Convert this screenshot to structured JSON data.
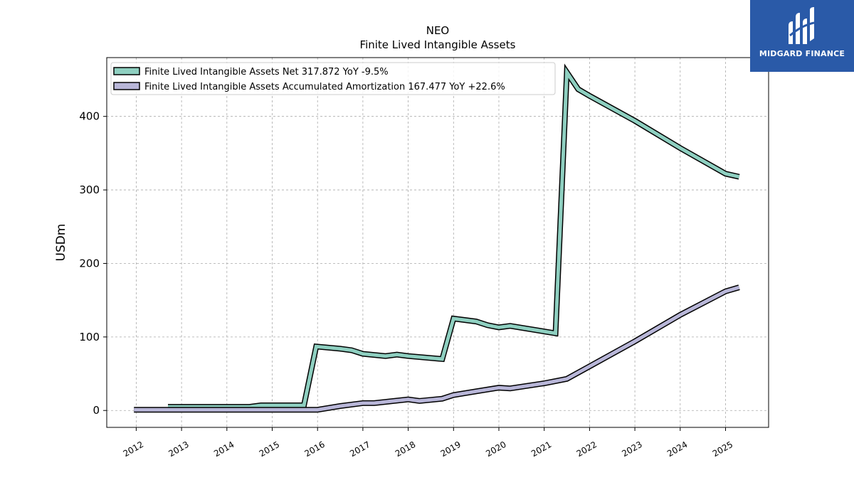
{
  "chart_data": {
    "type": "line",
    "title": "NEO",
    "subtitle": "Finite Lived Intangible Assets",
    "ylabel": "USDm",
    "xlabel": "",
    "xlim": [
      2011.35,
      2025.95
    ],
    "ylim": [
      -23,
      480
    ],
    "yticks": [
      0,
      100,
      200,
      300,
      400
    ],
    "xticks": [
      "2012",
      "2013",
      "2014",
      "2015",
      "2016",
      "2017",
      "2018",
      "2019",
      "2020",
      "2021",
      "2022",
      "2023",
      "2024",
      "2025"
    ],
    "grid": true,
    "legend_position": "top-left",
    "series": [
      {
        "name": "Finite Lived Intangible Assets Net  317.872 YoY -9.5%",
        "color": "#8ecfc0",
        "points": [
          [
            2012.7,
            5
          ],
          [
            2013.5,
            5
          ],
          [
            2014.5,
            5
          ],
          [
            2014.75,
            7
          ],
          [
            2015.7,
            7
          ],
          [
            2015.97,
            87
          ],
          [
            2016.5,
            84
          ],
          [
            2016.75,
            82
          ],
          [
            2017.0,
            77
          ],
          [
            2017.5,
            74
          ],
          [
            2017.75,
            76
          ],
          [
            2018.0,
            74
          ],
          [
            2018.75,
            70
          ],
          [
            2019.0,
            125
          ],
          [
            2019.5,
            121
          ],
          [
            2019.75,
            116
          ],
          [
            2020.0,
            113
          ],
          [
            2020.25,
            115
          ],
          [
            2021.25,
            105
          ],
          [
            2021.5,
            460
          ],
          [
            2021.75,
            437
          ],
          [
            2022.0,
            428
          ],
          [
            2023.0,
            394
          ],
          [
            2024.0,
            357
          ],
          [
            2025.0,
            322
          ],
          [
            2025.3,
            317.872
          ]
        ]
      },
      {
        "name": "Finite Lived Intangible Assets Accumulated Amortization  167.477 YoY +22.6%",
        "color": "#b8b6d8",
        "points": [
          [
            2011.95,
            1
          ],
          [
            2013.0,
            1
          ],
          [
            2014.0,
            1
          ],
          [
            2015.0,
            1
          ],
          [
            2016.0,
            1
          ],
          [
            2016.5,
            6
          ],
          [
            2017.0,
            10
          ],
          [
            2017.25,
            10
          ],
          [
            2018.0,
            15
          ],
          [
            2018.25,
            13
          ],
          [
            2018.75,
            16
          ],
          [
            2019.0,
            21
          ],
          [
            2019.5,
            26
          ],
          [
            2020.0,
            31
          ],
          [
            2020.25,
            30
          ],
          [
            2021.0,
            37
          ],
          [
            2021.25,
            40
          ],
          [
            2021.5,
            43
          ],
          [
            2022.0,
            60
          ],
          [
            2023.0,
            94
          ],
          [
            2024.0,
            130
          ],
          [
            2025.0,
            162
          ],
          [
            2025.3,
            167.477
          ]
        ]
      }
    ]
  },
  "logo": {
    "text": "MIDGARD FINANCE",
    "background": "#2a5aa8"
  }
}
